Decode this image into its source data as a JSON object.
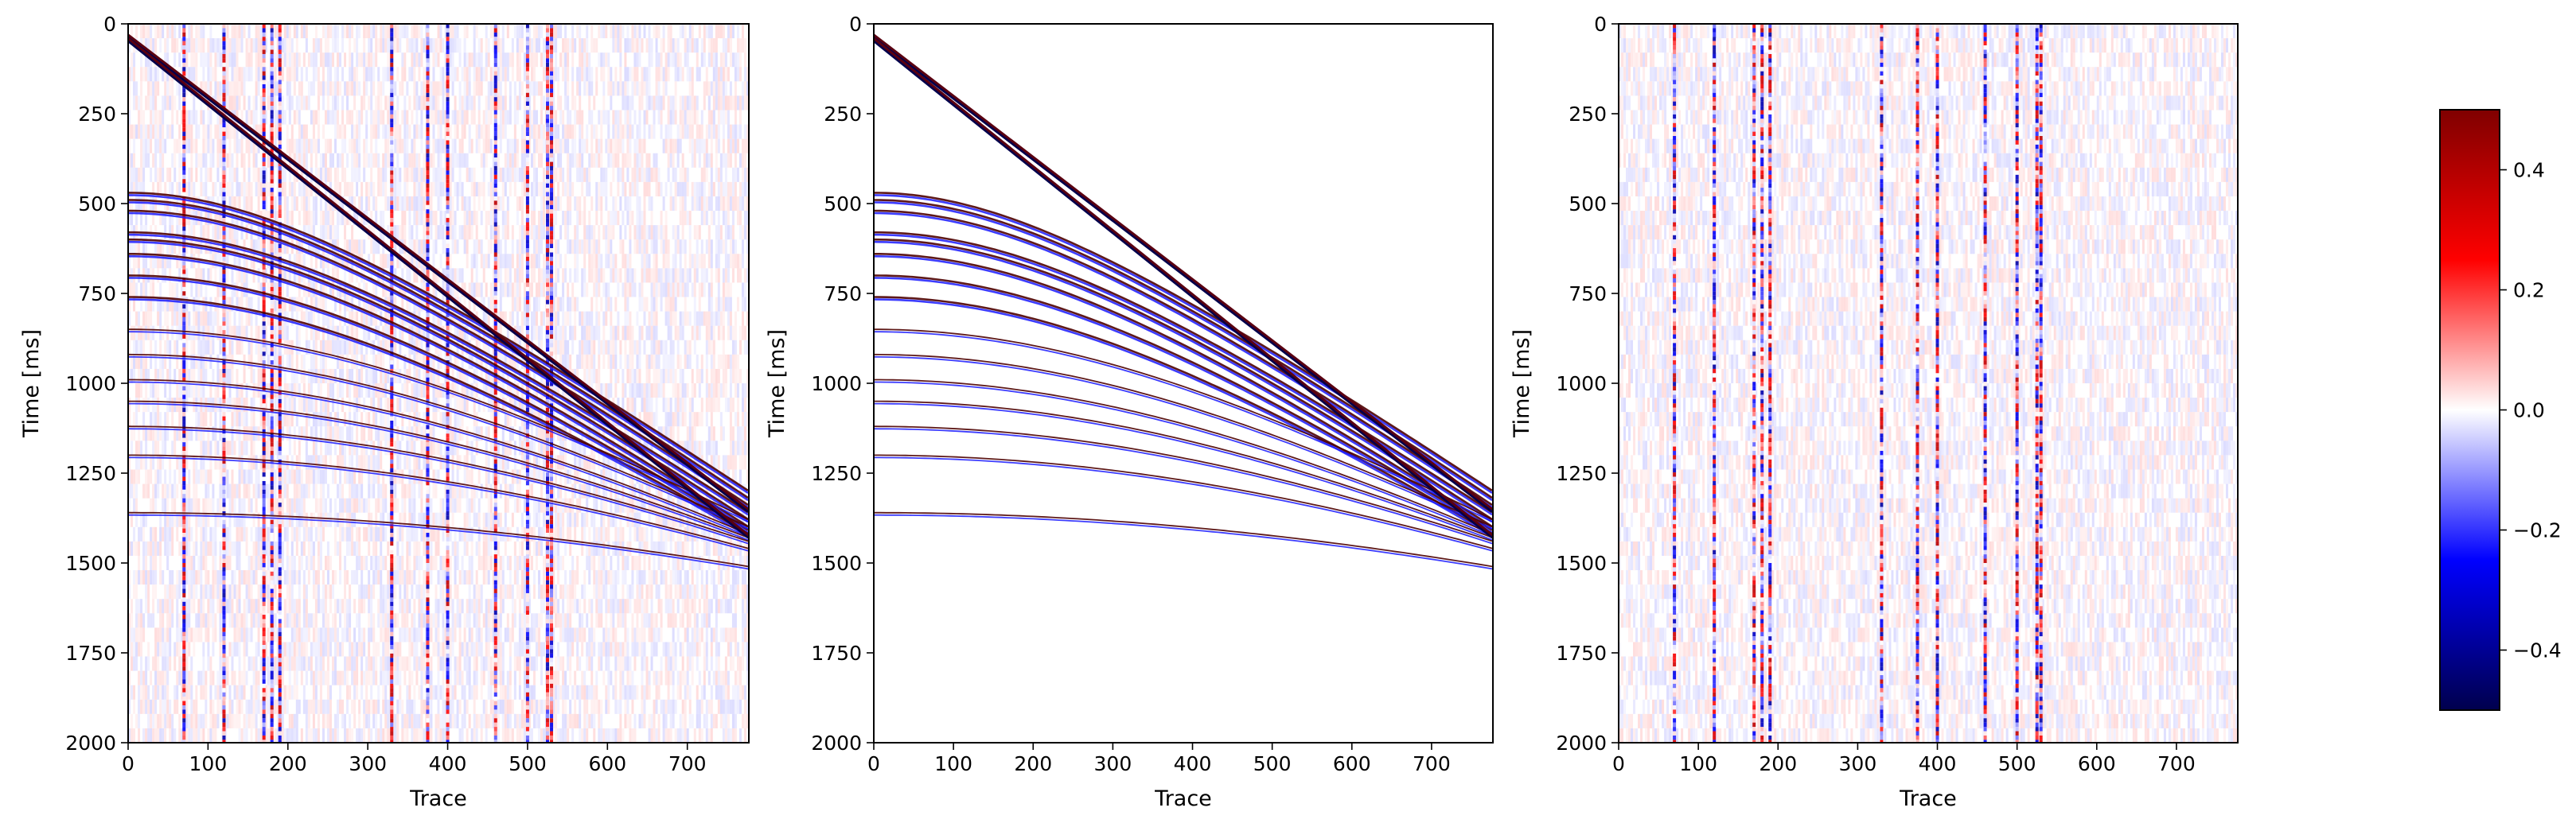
{
  "chart_data": [
    {
      "type": "heatmap",
      "xlabel": "Trace",
      "ylabel": "Time [ms]",
      "xlim": [
        0,
        777
      ],
      "ylim": [
        2000,
        0
      ],
      "xticks": [
        0,
        100,
        200,
        300,
        400,
        500,
        600,
        700
      ],
      "yticks": [
        0,
        250,
        500,
        750,
        1000,
        1250,
        1500,
        1750,
        2000
      ],
      "content": {
        "linear_events": [
          {
            "t0": 35,
            "slope_ms_per_trace": 1.7
          },
          {
            "t0": 45,
            "slope_ms_per_trace": 1.78
          }
        ],
        "hyperbolic_events": [
          {
            "t0": 470,
            "t_end": 1300
          },
          {
            "t0": 490,
            "t_end": 1320
          },
          {
            "t0": 520,
            "t_end": 1340
          },
          {
            "t0": 580,
            "t_end": 1360
          },
          {
            "t0": 600,
            "t_end": 1380
          },
          {
            "t0": 640,
            "t_end": 1400
          },
          {
            "t0": 700,
            "t_end": 1410
          },
          {
            "t0": 760,
            "t_end": 1420
          },
          {
            "t0": 850,
            "t_end": 1380
          },
          {
            "t0": 920,
            "t_end": 1400
          },
          {
            "t0": 990,
            "t_end": 1420
          },
          {
            "t0": 1050,
            "t_end": 1430
          },
          {
            "t0": 1120,
            "t_end": 1440
          },
          {
            "t0": 1200,
            "t_end": 1460
          },
          {
            "t0": 1360,
            "t_end": 1510
          }
        ],
        "noise_traces": [
          70,
          120,
          170,
          180,
          190,
          330,
          375,
          400,
          460,
          500,
          525,
          530
        ],
        "noise_level": 0.35
      }
    },
    {
      "type": "heatmap",
      "xlabel": "Trace",
      "ylabel": "Time [ms]",
      "xlim": [
        0,
        777
      ],
      "ylim": [
        2000,
        0
      ],
      "xticks": [
        0,
        100,
        200,
        300,
        400,
        500,
        600,
        700
      ],
      "yticks": [
        0,
        250,
        500,
        750,
        1000,
        1250,
        1500,
        1750,
        2000
      ],
      "content": {
        "linear_events": [
          {
            "t0": 35,
            "slope_ms_per_trace": 1.7
          },
          {
            "t0": 45,
            "slope_ms_per_trace": 1.78
          }
        ],
        "hyperbolic_events": [
          {
            "t0": 470,
            "t_end": 1300
          },
          {
            "t0": 490,
            "t_end": 1320
          },
          {
            "t0": 520,
            "t_end": 1340
          },
          {
            "t0": 580,
            "t_end": 1360
          },
          {
            "t0": 600,
            "t_end": 1380
          },
          {
            "t0": 640,
            "t_end": 1400
          },
          {
            "t0": 700,
            "t_end": 1410
          },
          {
            "t0": 760,
            "t_end": 1420
          },
          {
            "t0": 850,
            "t_end": 1380
          },
          {
            "t0": 920,
            "t_end": 1400
          },
          {
            "t0": 990,
            "t_end": 1420
          },
          {
            "t0": 1050,
            "t_end": 1430
          },
          {
            "t0": 1120,
            "t_end": 1440
          },
          {
            "t0": 1200,
            "t_end": 1460
          },
          {
            "t0": 1360,
            "t_end": 1510
          }
        ],
        "noise_traces": [],
        "noise_level": 0.0
      }
    },
    {
      "type": "heatmap",
      "xlabel": "Trace",
      "ylabel": "Time [ms]",
      "xlim": [
        0,
        777
      ],
      "ylim": [
        2000,
        0
      ],
      "xticks": [
        0,
        100,
        200,
        300,
        400,
        500,
        600,
        700
      ],
      "yticks": [
        0,
        250,
        500,
        750,
        1000,
        1250,
        1500,
        1750,
        2000
      ],
      "content": {
        "linear_events": [],
        "hyperbolic_events": [],
        "noise_traces": [
          70,
          120,
          170,
          180,
          190,
          330,
          375,
          400,
          460,
          500,
          525,
          530
        ],
        "noise_level": 0.35
      }
    }
  ],
  "colorbar": {
    "colormap": "seismic",
    "vmin": -0.5,
    "vmax": 0.5,
    "ticks": [
      0.4,
      0.2,
      0.0,
      -0.2,
      -0.4
    ],
    "tick_labels": [
      "0.4",
      "0.2",
      "0.0",
      "−0.2",
      "−0.4"
    ]
  },
  "colors": {
    "positive": "#800000",
    "negative": "#00004c",
    "zero": "#ffffff"
  }
}
